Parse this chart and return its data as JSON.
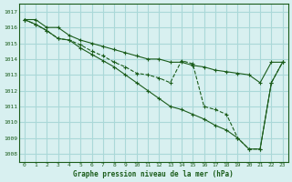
{
  "title": "Graphe pression niveau de la mer (hPa)",
  "bg_color": "#d8f0f0",
  "grid_color": "#aad8d8",
  "line_color": "#1a5c1a",
  "x_ticks": [
    0,
    1,
    2,
    3,
    4,
    5,
    6,
    7,
    8,
    9,
    10,
    11,
    12,
    13,
    14,
    15,
    16,
    17,
    18,
    19,
    20,
    21,
    22,
    23
  ],
  "ylim": [
    1007.5,
    1017.5
  ],
  "y_ticks": [
    1008,
    1009,
    1010,
    1011,
    1012,
    1013,
    1014,
    1015,
    1016,
    1017
  ],
  "series1": [
    1016.5,
    1016.5,
    1016.0,
    1016.0,
    1015.5,
    1015.2,
    1015.0,
    1014.8,
    1014.6,
    1014.4,
    1014.2,
    1014.0,
    1014.0,
    1013.8,
    1013.8,
    1013.6,
    1013.5,
    1013.3,
    1013.2,
    1013.1,
    1013.0,
    1012.5,
    1013.8,
    1013.8
  ],
  "series2": [
    1016.5,
    1016.2,
    1015.8,
    1015.3,
    1015.2,
    1014.9,
    1014.5,
    1014.2,
    1013.8,
    1013.5,
    1013.1,
    1013.0,
    1012.8,
    1012.5,
    1013.9,
    1013.7,
    1011.0,
    1010.8,
    1010.5,
    1009.0,
    1008.3,
    1008.3,
    1012.5,
    1013.8
  ],
  "series3": [
    1016.5,
    1016.2,
    1015.8,
    1015.3,
    1015.2,
    1014.7,
    1014.3,
    1013.9,
    1013.5,
    1013.0,
    1012.5,
    1012.0,
    1011.5,
    1011.0,
    1010.8,
    1010.5,
    1010.2,
    1009.8,
    1009.5,
    1009.0,
    1008.3,
    1008.3,
    1012.5,
    1013.8
  ]
}
